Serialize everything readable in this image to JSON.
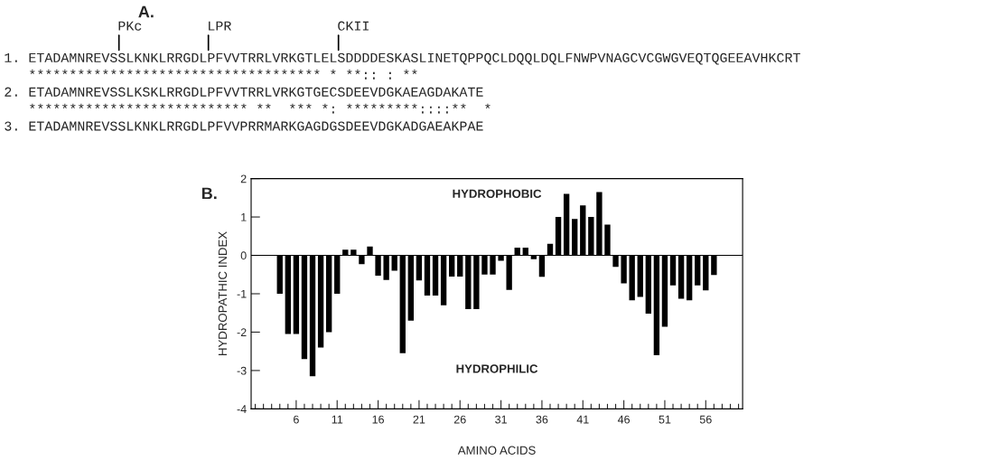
{
  "chart_data": [
    {
      "type": "other",
      "title": "A.",
      "annotations": [
        "              PKc        LPR             CKII",
        "1. ETADAMNREVSSLKNKLRRGDLPFVVTRRLVRKGTLELSDDDDESKASLINETQPPQCLDQQLDQLFNWPVNAGCVCGWGVEQTQGEEAVHKCRT",
        "   ************************************ * **:: : **",
        "2. ETADAMNREVSSLKSKLRRGDLPFVVTRRLVRKGTGECSDEEVDGKAEAGDAKATE",
        "   *************************** **  *** *: *********::::**  *",
        "3. ETADAMNREVSSLKNKLRRGDLPFVVPRRMARKGAGDGSDEEVDGKADGAEAKPAE"
      ]
    },
    {
      "type": "bar",
      "title": "B.",
      "xlabel": "AMINO ACIDS",
      "ylabel": "HYDROPATHIC INDEX",
      "color": "#000000",
      "x": [
        4,
        5,
        6,
        7,
        8,
        9,
        10,
        11,
        12,
        13,
        14,
        15,
        16,
        17,
        18,
        19,
        20,
        21,
        22,
        23,
        24,
        25,
        26,
        27,
        28,
        29,
        30,
        31,
        32,
        33,
        34,
        35,
        36,
        37,
        38,
        39,
        40,
        41,
        42,
        43,
        44,
        45,
        46,
        47,
        48,
        49,
        50,
        51,
        52,
        53,
        54,
        55,
        56,
        57
      ],
      "values": [
        -1.0,
        -2.05,
        -2.05,
        -2.7,
        -3.15,
        -2.4,
        -2.0,
        -1.0,
        0.15,
        0.15,
        -0.23,
        0.23,
        -0.53,
        -0.64,
        -0.4,
        -2.55,
        -1.7,
        -0.65,
        -1.05,
        -1.05,
        -1.3,
        -0.55,
        -0.55,
        -1.4,
        -1.4,
        -0.5,
        -0.5,
        -0.14,
        -0.9,
        0.2,
        0.2,
        -0.1,
        -0.56,
        0.3,
        1.0,
        1.6,
        0.95,
        1.3,
        1.0,
        1.65,
        0.8,
        -0.3,
        -0.73,
        -1.17,
        -1.08,
        -1.52,
        -2.6,
        -1.86,
        -0.78,
        -1.13,
        -1.17,
        -0.78,
        -0.91,
        -0.51
      ],
      "xlim": [
        0.5,
        60.5
      ],
      "xticks": [
        {
          "value": 1,
          "label": null
        },
        {
          "value": 2,
          "label": null
        },
        {
          "value": 3,
          "label": null
        },
        {
          "value": 4,
          "label": null
        },
        {
          "value": 5,
          "label": null
        },
        6,
        {
          "value": 7,
          "label": null
        },
        {
          "value": 8,
          "label": null
        },
        {
          "value": 9,
          "label": null
        },
        {
          "value": 10,
          "label": null
        },
        11,
        {
          "value": 12,
          "label": null
        },
        {
          "value": 13,
          "label": null
        },
        {
          "value": 14,
          "label": null
        },
        {
          "value": 15,
          "label": null
        },
        16,
        {
          "value": 17,
          "label": null
        },
        {
          "value": 18,
          "label": null
        },
        {
          "value": 19,
          "label": null
        },
        {
          "value": 20,
          "label": null
        },
        21,
        {
          "value": 22,
          "label": null
        },
        {
          "value": 23,
          "label": null
        },
        {
          "value": 24,
          "label": null
        },
        {
          "value": 25,
          "label": null
        },
        26,
        {
          "value": 27,
          "label": null
        },
        {
          "value": 28,
          "label": null
        },
        {
          "value": 29,
          "label": null
        },
        {
          "value": 30,
          "label": null
        },
        31,
        {
          "value": 32,
          "label": null
        },
        {
          "value": 33,
          "label": null
        },
        {
          "value": 34,
          "label": null
        },
        {
          "value": 35,
          "label": null
        },
        36,
        {
          "value": 37,
          "label": null
        },
        {
          "value": 38,
          "label": null
        },
        {
          "value": 39,
          "label": null
        },
        {
          "value": 40,
          "label": null
        },
        41,
        {
          "value": 42,
          "label": null
        },
        {
          "value": 43,
          "label": null
        },
        {
          "value": 44,
          "label": null
        },
        {
          "value": 45,
          "label": null
        },
        46,
        {
          "value": 47,
          "label": null
        },
        {
          "value": 48,
          "label": null
        },
        {
          "value": 49,
          "label": null
        },
        {
          "value": 50,
          "label": null
        },
        51,
        {
          "value": 52,
          "label": null
        },
        {
          "value": 53,
          "label": null
        },
        {
          "value": 54,
          "label": null
        },
        {
          "value": 55,
          "label": null
        },
        56,
        {
          "value": 57,
          "label": null
        },
        {
          "value": 58,
          "label": null
        },
        {
          "value": 59,
          "label": null
        },
        {
          "value": 60,
          "label": null
        }
      ],
      "ylim": [
        -4,
        2
      ],
      "yticks": [
        -4,
        -3,
        -2,
        -1,
        0,
        1,
        2
      ],
      "ref_lines": [
        {
          "axis": "y",
          "value": 0
        }
      ],
      "annotations": [
        "HYDROPHOBIC",
        "HYDROPHILIC"
      ],
      "grid": false,
      "legend": false
    }
  ]
}
